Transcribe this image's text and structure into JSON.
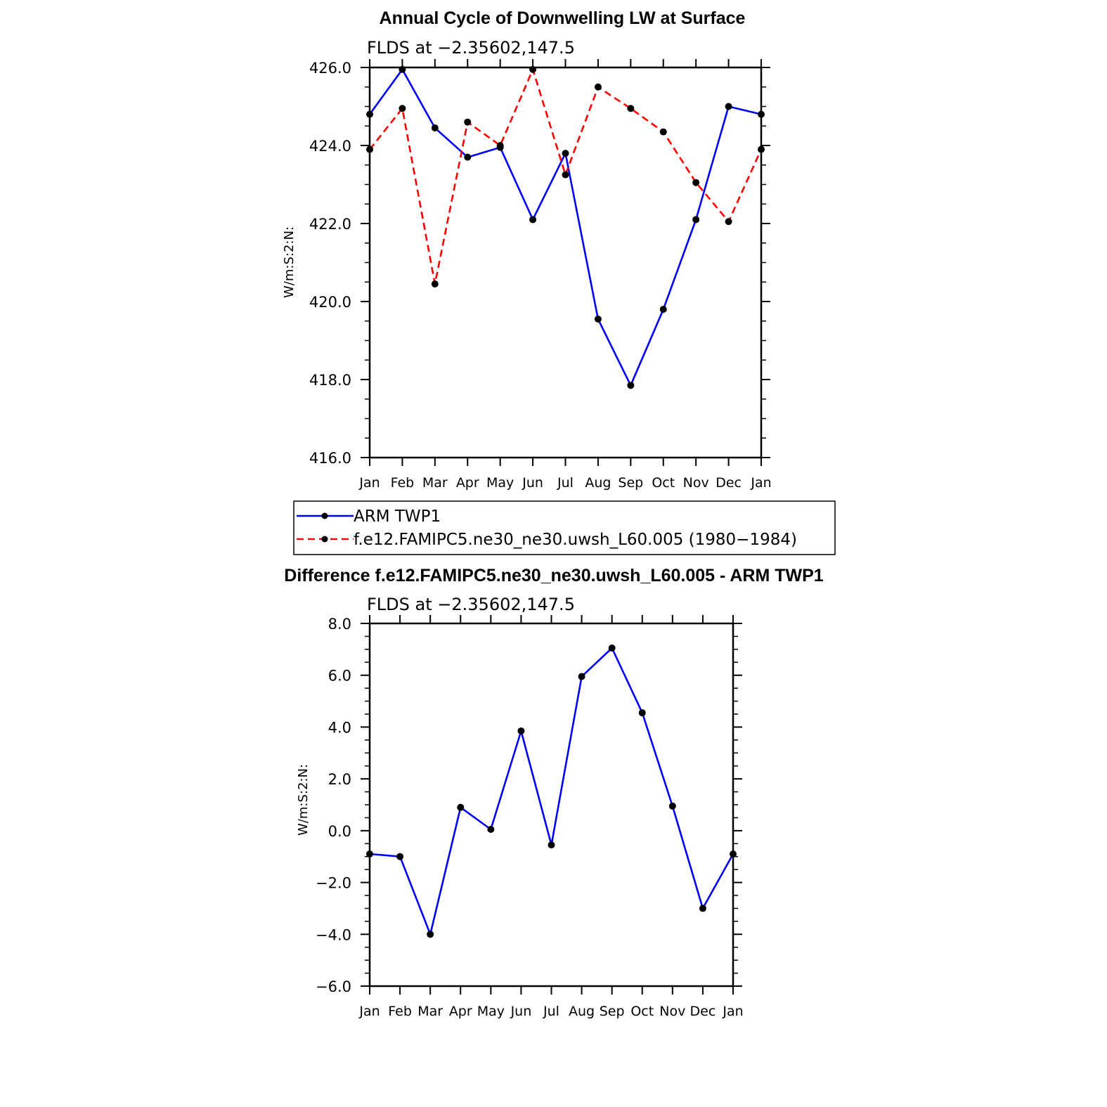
{
  "chart_data": [
    {
      "type": "line",
      "title": "Annual Cycle of Downwelling LW at Surface",
      "subtitle": "FLDS at −2.35602,147.5",
      "ylabel": "W/m:S:2:N:",
      "xlabel": "",
      "categories": [
        "Jan",
        "Feb",
        "Mar",
        "Apr",
        "May",
        "Jun",
        "Jul",
        "Aug",
        "Sep",
        "Oct",
        "Nov",
        "Dec",
        "Jan"
      ],
      "ylim": [
        416,
        426
      ],
      "yticks": [
        416,
        418,
        420,
        422,
        424,
        426
      ],
      "ytick_labels": [
        "416.0",
        "418.0",
        "420.0",
        "422.0",
        "424.0",
        "426.0"
      ],
      "grid": false,
      "legend_position": "below",
      "series": [
        {
          "name": "ARM TWP1",
          "color": "#0000ff",
          "style": "solid",
          "values": [
            424.8,
            425.95,
            424.45,
            423.7,
            423.95,
            422.1,
            423.8,
            419.55,
            417.85,
            419.8,
            422.1,
            425.0,
            424.8
          ]
        },
        {
          "name": "f.e12.FAMIPC5.ne30_ne30.uwsh_L60.005 (1980−1984)",
          "color": "#ff0000",
          "style": "dashed",
          "values": [
            423.9,
            424.95,
            420.45,
            424.6,
            424.0,
            425.95,
            423.25,
            425.5,
            424.95,
            424.35,
            423.05,
            422.05,
            423.9
          ]
        }
      ]
    },
    {
      "type": "line",
      "title": "Difference f.e12.FAMIPC5.ne30_ne30.uwsh_L60.005 - ARM TWP1",
      "subtitle": "FLDS at −2.35602,147.5",
      "ylabel": "W/m:S:2:N:",
      "xlabel": "",
      "categories": [
        "Jan",
        "Feb",
        "Mar",
        "Apr",
        "May",
        "Jun",
        "Jul",
        "Aug",
        "Sep",
        "Oct",
        "Nov",
        "Dec",
        "Jan"
      ],
      "ylim": [
        -6,
        8
      ],
      "yticks": [
        -6,
        -4,
        -2,
        0,
        2,
        4,
        6,
        8
      ],
      "ytick_labels": [
        "−6.0",
        "−4.0",
        "−2.0",
        "0.0",
        "2.0",
        "4.0",
        "6.0",
        "8.0"
      ],
      "grid": false,
      "series": [
        {
          "name": "Difference",
          "color": "#0000ff",
          "style": "solid",
          "values": [
            -0.9,
            -1.0,
            -4.0,
            0.9,
            0.05,
            3.85,
            -0.55,
            5.95,
            7.05,
            4.55,
            0.95,
            -3.0,
            -0.9
          ]
        }
      ]
    }
  ]
}
